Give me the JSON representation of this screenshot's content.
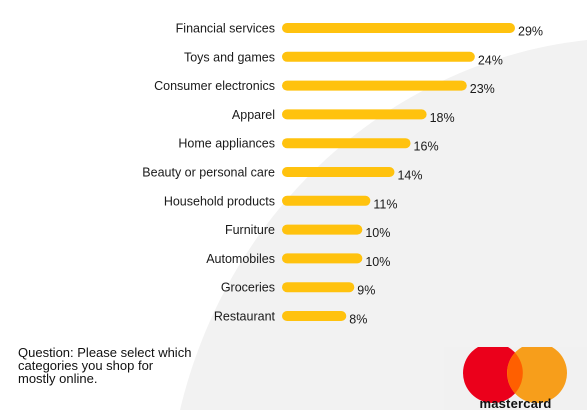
{
  "chart_data": {
    "type": "bar",
    "orientation": "horizontal",
    "categories": [
      "Financial services",
      "Toys and games",
      "Consumer electronics",
      "Apparel",
      "Home appliances",
      "Beauty or personal care",
      "Household products",
      "Furniture",
      "Automobiles",
      "Groceries",
      "Restaurant"
    ],
    "values": [
      29,
      24,
      23,
      18,
      16,
      14,
      11,
      10,
      10,
      9,
      8
    ],
    "value_labels": [
      "29%",
      "24%",
      "23%",
      "18%",
      "16%",
      "14%",
      "11%",
      "10%",
      "10%",
      "9%",
      "8%"
    ],
    "bar_color": "#FFC20E",
    "xlim": [
      0,
      29
    ]
  },
  "question": "Question: Please select which categories you shop for mostly online.",
  "logo": {
    "wordmark": "mastercard",
    "colors": {
      "red": "#EB001B",
      "orange": "#F79E1B",
      "overlap": "#FF5F00"
    }
  },
  "background_arc_color": "#f2f2f2"
}
